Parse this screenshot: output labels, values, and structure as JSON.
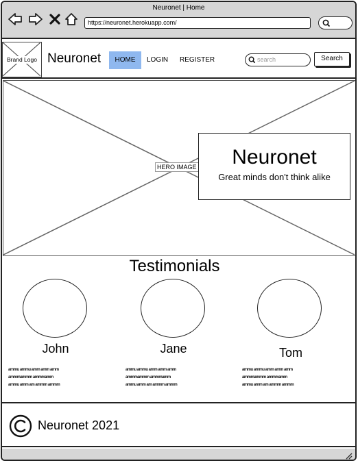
{
  "window": {
    "title": "Neuronet | Home",
    "url": "https://neuronet.herokuapp.com/",
    "icons": [
      "back-arrow-icon",
      "forward-arrow-icon",
      "close-x-icon",
      "home-icon",
      "search-icon"
    ]
  },
  "nav": {
    "logo_label": "Brand Logo",
    "site_name": "Neuronet",
    "links": [
      {
        "label": "HOME",
        "active": true
      },
      {
        "label": "LOGIN",
        "active": false
      },
      {
        "label": "REGISTER",
        "active": false
      }
    ],
    "search_placeholder": "search",
    "search_button": "Search"
  },
  "hero": {
    "image_label": "HERO IMAGE",
    "title": "Neuronet",
    "tagline": "Great minds don't think alike"
  },
  "testimonials": {
    "title": "Testimonials",
    "items": [
      {
        "name": "John",
        "text": "ammu ammu amm amm amm\nammmammm ammmamm\nammu amm am ammm ammm"
      },
      {
        "name": "Jane",
        "text": "ammu ammu amm amm amm\nammmammm ammmamm\nammu amm am ammm ammm"
      },
      {
        "name": "Tom",
        "text": "ammu ammu amm amm amm\nammmammm ammmamm\nammu amm am ammm ammm"
      }
    ]
  },
  "footer": {
    "text": "Neuronet 2021"
  },
  "colors": {
    "active_nav": "#8fb8ef",
    "chrome": "#d6d6d6"
  }
}
